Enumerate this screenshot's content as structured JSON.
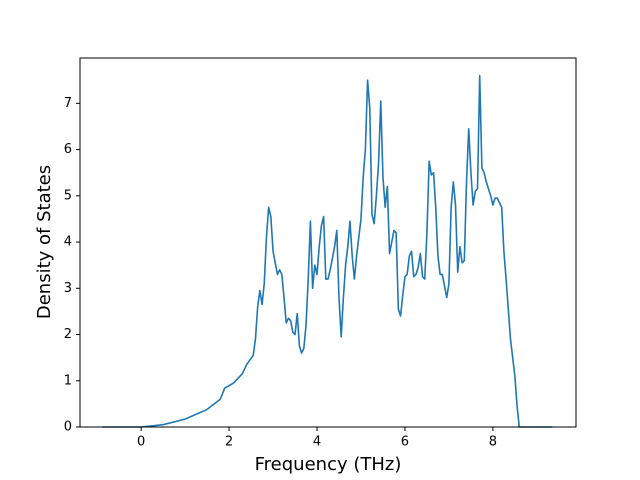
{
  "chart_data": {
    "type": "line",
    "x_label": "Frequency (THz)",
    "y_label": "Density of States",
    "x": [
      -0.89,
      -0.5,
      0,
      0.5,
      1.0,
      1.5,
      1.8,
      1.9,
      2.1,
      2.3,
      2.4,
      2.55,
      2.6,
      2.65,
      2.7,
      2.75,
      2.8,
      2.85,
      2.9,
      2.95,
      3.0,
      3.1,
      3.15,
      3.2,
      3.25,
      3.3,
      3.35,
      3.4,
      3.45,
      3.5,
      3.55,
      3.6,
      3.65,
      3.7,
      3.75,
      3.8,
      3.85,
      3.9,
      3.95,
      4.0,
      4.05,
      4.1,
      4.15,
      4.2,
      4.25,
      4.3,
      4.4,
      4.45,
      4.5,
      4.55,
      4.6,
      4.65,
      4.7,
      4.75,
      4.8,
      4.85,
      4.9,
      5.0,
      5.05,
      5.1,
      5.15,
      5.2,
      5.25,
      5.3,
      5.35,
      5.4,
      5.45,
      5.5,
      5.55,
      5.6,
      5.65,
      5.7,
      5.75,
      5.8,
      5.85,
      5.9,
      5.95,
      6.0,
      6.05,
      6.1,
      6.15,
      6.2,
      6.25,
      6.3,
      6.35,
      6.4,
      6.45,
      6.5,
      6.55,
      6.6,
      6.65,
      6.7,
      6.75,
      6.8,
      6.85,
      6.9,
      6.95,
      7.0,
      7.05,
      7.1,
      7.15,
      7.2,
      7.25,
      7.3,
      7.35,
      7.4,
      7.45,
      7.5,
      7.55,
      7.6,
      7.65,
      7.7,
      7.75,
      7.8,
      7.85,
      7.9,
      7.95,
      8.0,
      8.05,
      8.1,
      8.15,
      8.2,
      8.25,
      8.3,
      8.4,
      8.5,
      8.55,
      8.6,
      9.35
    ],
    "series": [
      {
        "color": "#1f77b4",
        "values": [
          0,
          0,
          0,
          0.05,
          0.17,
          0.38,
          0.6,
          0.84,
          0.95,
          1.15,
          1.35,
          1.55,
          1.9,
          2.6,
          2.95,
          2.65,
          3.1,
          4.1,
          4.75,
          4.55,
          3.8,
          3.3,
          3.4,
          3.3,
          2.8,
          2.25,
          2.35,
          2.3,
          2.05,
          2.0,
          2.45,
          1.75,
          1.6,
          1.7,
          2.2,
          3.2,
          4.45,
          3.0,
          3.5,
          3.3,
          3.9,
          4.35,
          4.55,
          3.2,
          3.2,
          3.4,
          3.9,
          4.25,
          2.8,
          1.95,
          2.8,
          3.5,
          3.9,
          4.45,
          3.7,
          3.2,
          3.7,
          4.5,
          5.4,
          6.0,
          7.5,
          6.9,
          4.6,
          4.4,
          5.0,
          5.7,
          7.05,
          5.4,
          4.75,
          5.2,
          3.75,
          4.0,
          4.25,
          4.2,
          2.55,
          2.4,
          2.85,
          3.25,
          3.3,
          3.7,
          3.8,
          3.25,
          3.3,
          3.45,
          3.75,
          3.25,
          3.2,
          4.2,
          5.75,
          5.45,
          5.5,
          4.75,
          3.7,
          3.3,
          3.3,
          3.05,
          2.8,
          3.1,
          4.75,
          5.3,
          4.8,
          3.35,
          3.9,
          3.55,
          3.6,
          5.3,
          6.45,
          5.5,
          4.8,
          5.1,
          5.15,
          7.6,
          5.6,
          5.5,
          5.3,
          5.15,
          5.0,
          4.8,
          4.95,
          4.95,
          4.85,
          4.75,
          3.8,
          3.2,
          1.9,
          1.1,
          0.45,
          0,
          0
        ]
      }
    ],
    "xlim": [
      -1.39,
      9.89
    ],
    "xticks": [
      0,
      2,
      4,
      6,
      8
    ],
    "ylim": [
      0,
      7.98
    ],
    "yticks": [
      0,
      1,
      2,
      3,
      4,
      5,
      6,
      7
    ]
  }
}
